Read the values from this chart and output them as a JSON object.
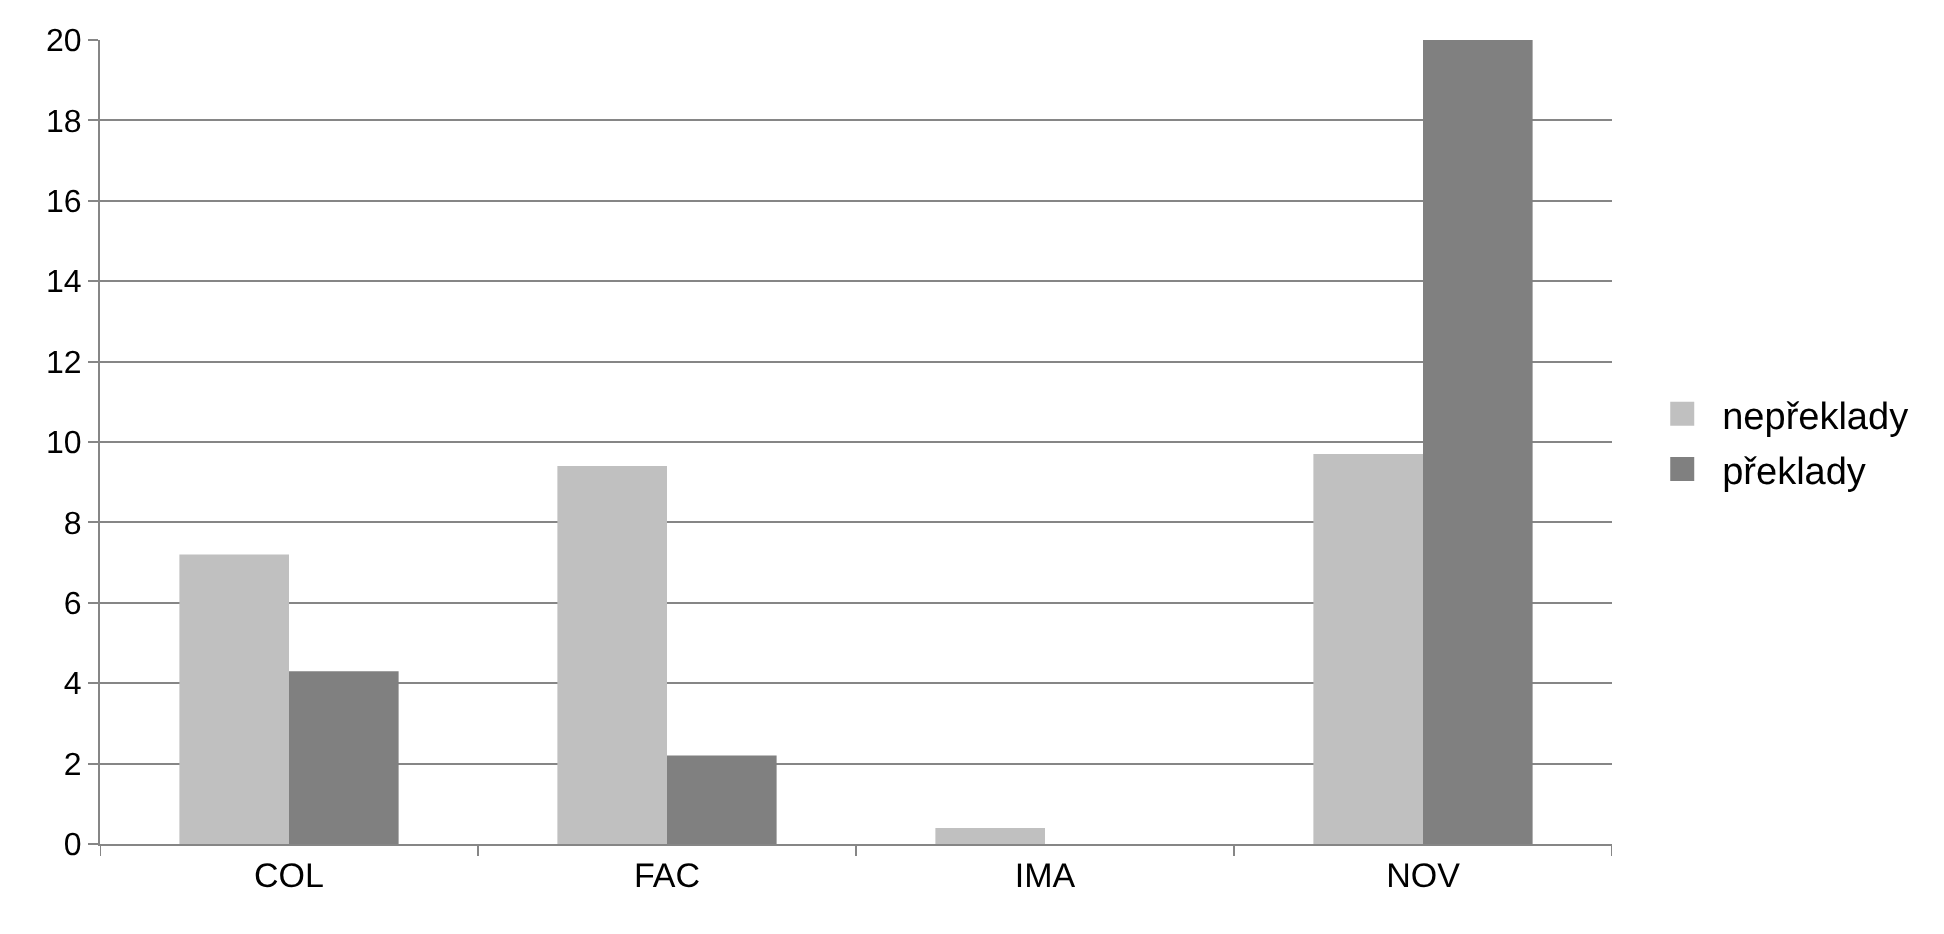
{
  "chart_data": {
    "type": "bar",
    "categories": [
      "COL",
      "FAC",
      "IMA",
      "NOV"
    ],
    "series": [
      {
        "name": "nepřeklady",
        "color": "#c0c0c0",
        "values": [
          7.2,
          9.4,
          0.4,
          9.7
        ]
      },
      {
        "name": "překlady",
        "color": "#808080",
        "values": [
          4.3,
          2.2,
          0,
          20
        ]
      }
    ],
    "ylim": [
      0,
      20
    ],
    "yticks": [
      0,
      2,
      4,
      6,
      8,
      10,
      12,
      14,
      16,
      18,
      20
    ],
    "grid": "y",
    "legend": "right"
  }
}
